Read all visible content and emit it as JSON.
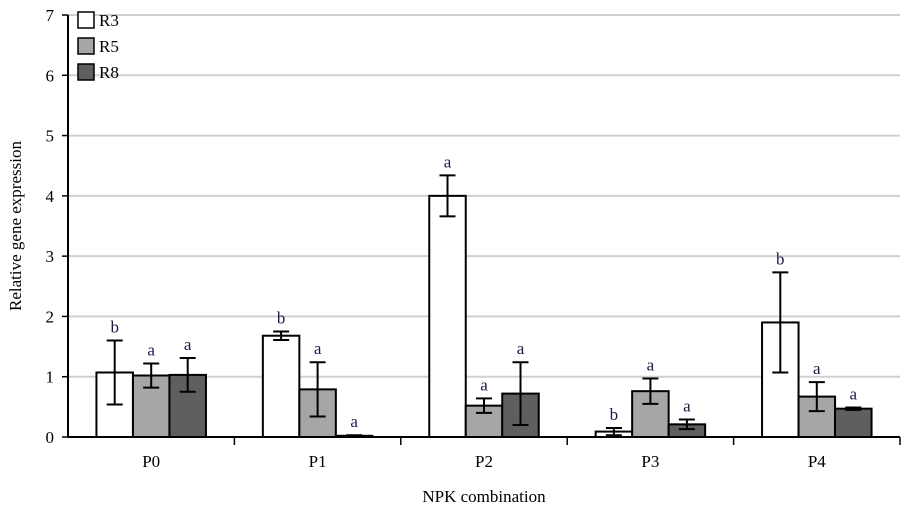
{
  "chart_data": {
    "type": "bar",
    "title": "",
    "xlabel": "NPK combination",
    "ylabel": "Relative gene expression",
    "ylim": [
      0,
      7
    ],
    "yticks": [
      0,
      1,
      2,
      3,
      4,
      5,
      6,
      7
    ],
    "grid": true,
    "legend": "top-left",
    "categories": [
      "P0",
      "P1",
      "P2",
      "P3",
      "P4"
    ],
    "series": [
      {
        "name": "R3",
        "color": "#ffffff",
        "values": [
          1.07,
          1.68,
          4.0,
          0.09,
          1.9
        ],
        "errors": [
          0.53,
          0.07,
          0.34,
          0.06,
          0.83
        ],
        "labels": [
          "b",
          "b",
          "a",
          "b",
          "b"
        ]
      },
      {
        "name": "R5",
        "color": "#a6a6a6",
        "values": [
          1.02,
          0.79,
          0.52,
          0.76,
          0.67
        ],
        "errors": [
          0.2,
          0.45,
          0.12,
          0.21,
          0.24
        ],
        "labels": [
          "a",
          "a",
          "a",
          "a",
          "a"
        ]
      },
      {
        "name": "R8",
        "color": "#5f5f5f",
        "values": [
          1.03,
          0.02,
          0.72,
          0.21,
          0.47
        ],
        "errors": [
          0.28,
          0.01,
          0.52,
          0.08,
          0.02
        ],
        "labels": [
          "a",
          "a",
          "a",
          "a",
          "a"
        ]
      }
    ]
  }
}
